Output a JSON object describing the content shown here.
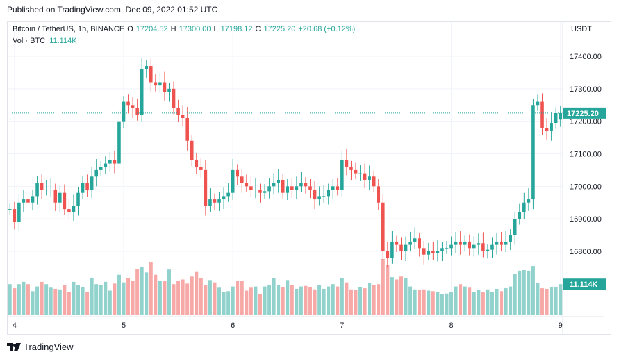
{
  "published": "Published on TradingView.com, Dec 09, 2022 01:52 UTC",
  "legend": {
    "symbol": "Bitcoin / TetherUS, 1h, BINANCE",
    "open_label": "O",
    "open": "17204.52",
    "high_label": "H",
    "high": "17300.00",
    "low_label": "L",
    "low": "17198.12",
    "close_label": "C",
    "close": "17225.20",
    "change": "+20.68 (+0.12%)"
  },
  "volume_legend": {
    "label": "Vol · BTC",
    "value": "11.114K"
  },
  "currency": "USDT",
  "footer": {
    "brand": "TradingView"
  },
  "colors": {
    "up": "#26a69a",
    "down": "#ef5350",
    "up_volume": "#92d2cc",
    "down_volume": "#f7a9a7",
    "grid": "#f0f3fa",
    "axis_text": "#131722"
  },
  "chart_data": {
    "type": "candlestick",
    "ylim": [
      16700,
      17450
    ],
    "y_ticks": [
      17400,
      17300,
      17200,
      17100,
      17000,
      16900,
      16800
    ],
    "y_tick_labels": [
      "17400.00",
      "17300.00",
      "17200.00",
      "17100.00",
      "17000.00",
      "16900.00",
      "16800.00"
    ],
    "x_ticks": [
      {
        "label": "4",
        "index": 1
      },
      {
        "label": "5",
        "index": 25
      },
      {
        "label": "6",
        "index": 49
      },
      {
        "label": "7",
        "index": 73
      },
      {
        "label": "8",
        "index": 97
      },
      {
        "label": "9",
        "index": 121
      }
    ],
    "current_price": "17225.20",
    "current_volume": "11.114K",
    "x_axis_label": "",
    "y_axis_label": "",
    "closes": [
      16930,
      16890,
      16950,
      16960,
      16950,
      16970,
      17010,
      16990,
      16990,
      16990,
      16950,
      16980,
      16930,
      16920,
      16940,
      16980,
      17010,
      16990,
      17030,
      17050,
      17060,
      17070,
      17080,
      17070,
      17200,
      17260,
      17250,
      17240,
      17220,
      17360,
      17370,
      17320,
      17310,
      17320,
      17290,
      17300,
      17240,
      17220,
      17210,
      17140,
      17080,
      17060,
      17050,
      16940,
      16960,
      16950,
      16960,
      16970,
      16980,
      17050,
      17030,
      17010,
      17000,
      16990,
      16990,
      16980,
      16985,
      17000,
      17010,
      17020,
      16980,
      17000,
      16990,
      17000,
      17010,
      17000,
      16990,
      16960,
      16970,
      16970,
      16990,
      17000,
      16990,
      17080,
      17060,
      17050,
      17040,
      17040,
      17020,
      17030,
      17000,
      16950,
      16800,
      16780,
      16830,
      16820,
      16800,
      16820,
      16830,
      16840,
      16810,
      16790,
      16800,
      16795,
      16800,
      16810,
      16810,
      16820,
      16830,
      16820,
      16830,
      16810,
      16820,
      16825,
      16800,
      16805,
      16820,
      16830,
      16820,
      16830,
      16850,
      16900,
      16920,
      16950,
      16960,
      17250,
      17260,
      17180,
      17170,
      17195,
      17225,
      17225
    ],
    "volumes": [
      52,
      45,
      52,
      56,
      52,
      40,
      48,
      56,
      52,
      46,
      44,
      43,
      50,
      38,
      56,
      50,
      47,
      38,
      63,
      52,
      50,
      56,
      41,
      53,
      68,
      55,
      62,
      58,
      78,
      82,
      72,
      89,
      68,
      57,
      58,
      77,
      52,
      58,
      60,
      53,
      65,
      74,
      62,
      51,
      59,
      55,
      46,
      38,
      40,
      48,
      57,
      58,
      41,
      46,
      48,
      35,
      48,
      51,
      62,
      51,
      47,
      59,
      51,
      44,
      48,
      49,
      47,
      43,
      50,
      44,
      48,
      52,
      48,
      62,
      55,
      43,
      42,
      47,
      45,
      54,
      50,
      52,
      95,
      85,
      64,
      60,
      65,
      62,
      48,
      43,
      42,
      43,
      41,
      40,
      38,
      35,
      36,
      38,
      48,
      52,
      48,
      46,
      38,
      42,
      39,
      43,
      38,
      44,
      40,
      45,
      48,
      70,
      75,
      76,
      75,
      83,
      54,
      45,
      44,
      47,
      47,
      52
    ],
    "opens": [
      16930,
      16930,
      16890,
      16950,
      16960,
      16950,
      16970,
      17010,
      16990,
      16990,
      16990,
      16950,
      16980,
      16930,
      16920,
      16940,
      16980,
      17010,
      16990,
      17030,
      17050,
      17060,
      17070,
      17080,
      17070,
      17200,
      17260,
      17250,
      17240,
      17220,
      17360,
      17370,
      17320,
      17310,
      17320,
      17290,
      17300,
      17240,
      17220,
      17210,
      17140,
      17080,
      17060,
      17050,
      16940,
      16960,
      16950,
      16960,
      16970,
      16980,
      17050,
      17030,
      17010,
      17000,
      16990,
      16990,
      16980,
      16985,
      17000,
      17010,
      17020,
      16980,
      17000,
      16990,
      17000,
      17010,
      17000,
      16990,
      16960,
      16970,
      16970,
      16990,
      17000,
      16990,
      17080,
      17060,
      17050,
      17040,
      17040,
      17020,
      17030,
      17000,
      16950,
      16800,
      16780,
      16830,
      16820,
      16800,
      16820,
      16830,
      16840,
      16810,
      16790,
      16800,
      16795,
      16800,
      16810,
      16810,
      16820,
      16830,
      16820,
      16830,
      16810,
      16820,
      16825,
      16800,
      16805,
      16820,
      16830,
      16820,
      16830,
      16850,
      16900,
      16920,
      16950,
      16960,
      17250,
      17260,
      17180,
      17170,
      17195,
      17205
    ]
  }
}
